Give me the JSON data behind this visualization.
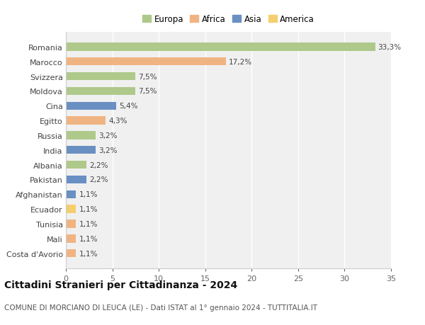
{
  "title": "Cittadini Stranieri per Cittadinanza - 2024",
  "subtitle": "COMUNE DI MORCIANO DI LEUCA (LE) - Dati ISTAT al 1° gennaio 2024 - TUTTITALIA.IT",
  "categories": [
    "Romania",
    "Marocco",
    "Svizzera",
    "Moldova",
    "Cina",
    "Egitto",
    "Russia",
    "India",
    "Albania",
    "Pakistan",
    "Afghanistan",
    "Ecuador",
    "Tunisia",
    "Mali",
    "Costa d'Avorio"
  ],
  "values": [
    33.3,
    17.2,
    7.5,
    7.5,
    5.4,
    4.3,
    3.2,
    3.2,
    2.2,
    2.2,
    1.1,
    1.1,
    1.1,
    1.1,
    1.1
  ],
  "labels": [
    "33,3%",
    "17,2%",
    "7,5%",
    "7,5%",
    "5,4%",
    "4,3%",
    "3,2%",
    "3,2%",
    "2,2%",
    "2,2%",
    "1,1%",
    "1,1%",
    "1,1%",
    "1,1%",
    "1,1%"
  ],
  "colors": [
    "#aec98a",
    "#f0b482",
    "#aec98a",
    "#aec98a",
    "#6a8fc2",
    "#f0b482",
    "#aec98a",
    "#6a8fc2",
    "#aec98a",
    "#6a8fc2",
    "#6a8fc2",
    "#f5ce6e",
    "#f0b482",
    "#f0b482",
    "#f0b482"
  ],
  "legend_labels": [
    "Europa",
    "Africa",
    "Asia",
    "America"
  ],
  "legend_colors": [
    "#aec98a",
    "#f0b482",
    "#6a8fc2",
    "#f5ce6e"
  ],
  "xlim": [
    0,
    35
  ],
  "xticks": [
    0,
    5,
    10,
    15,
    20,
    25,
    30,
    35
  ],
  "bg_color": "#ffffff",
  "plot_bg_color": "#f0f0f0",
  "grid_color": "#ffffff",
  "bar_height": 0.55,
  "label_fontsize": 7.5,
  "ytick_fontsize": 8,
  "xtick_fontsize": 8,
  "title_fontsize": 10,
  "subtitle_fontsize": 7.5,
  "legend_fontsize": 8.5
}
